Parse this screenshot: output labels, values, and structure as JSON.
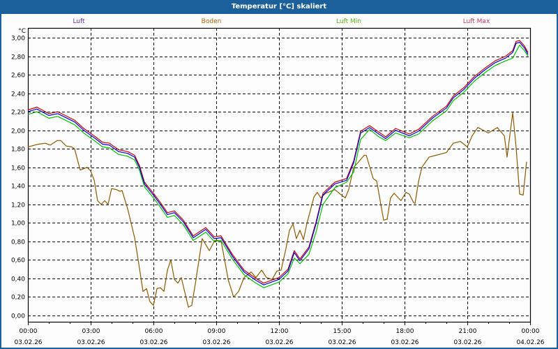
{
  "window": {
    "title": "Temperatur [°C] skaliert"
  },
  "chart_data": {
    "type": "line",
    "title": "Temperatur [°C] skaliert",
    "ylabel": "°C",
    "ylim": [
      0,
      3.0
    ],
    "xlim_hours": [
      0,
      24
    ],
    "grid": true,
    "legend_position": "top",
    "y_ticks": [
      "0,00",
      "0,20",
      "0,40",
      "0,60",
      "0,80",
      "1,00",
      "1,20",
      "1,40",
      "1,60",
      "1,80",
      "2,00",
      "2,20",
      "2,40",
      "2,60",
      "2,80",
      "3,00"
    ],
    "x_ticks": [
      {
        "time": "00:00",
        "date": "03.02.26"
      },
      {
        "time": "03:00",
        "date": "03.02.26"
      },
      {
        "time": "06:00",
        "date": "03.02.26"
      },
      {
        "time": "09:00",
        "date": "03.02.26"
      },
      {
        "time": "12:00",
        "date": "03.02.26"
      },
      {
        "time": "15:00",
        "date": "03.02.26"
      },
      {
        "time": "18:00",
        "date": "03.02.26"
      },
      {
        "time": "21:00",
        "date": "03.02.26"
      },
      {
        "time": "00:00",
        "date": "04.02.26"
      }
    ],
    "x_hours": [
      0,
      0.43,
      1.0,
      1.43,
      2.23,
      2.67,
      3.23,
      3.57,
      3.9,
      4.33,
      4.77,
      5.1,
      5.33,
      5.57,
      6.0,
      6.33,
      6.67,
      7.0,
      7.43,
      7.9,
      8.5,
      8.9,
      9.23,
      9.77,
      10.33,
      10.9,
      11.27,
      12.0,
      12.43,
      12.73,
      13.0,
      13.43,
      13.77,
      14.1,
      14.67,
      15.23,
      15.57,
      15.9,
      16.33,
      16.77,
      17.1,
      17.57,
      18.23,
      18.67,
      19.33,
      20.0,
      20.33,
      20.83,
      21.33,
      21.83,
      22.33,
      22.83,
      23.17,
      23.33,
      23.5,
      23.73,
      23.9
    ],
    "series": [
      {
        "name": "Luft",
        "color": "#0000d8",
        "values": [
          2.2,
          2.23,
          2.16,
          2.18,
          2.09,
          2.0,
          1.91,
          1.85,
          1.84,
          1.77,
          1.75,
          1.71,
          1.6,
          1.42,
          1.3,
          1.2,
          1.09,
          1.11,
          1.01,
          0.84,
          0.93,
          0.83,
          0.84,
          0.64,
          0.47,
          0.38,
          0.33,
          0.39,
          0.48,
          0.68,
          0.59,
          0.72,
          0.99,
          1.3,
          1.42,
          1.46,
          1.65,
          1.97,
          2.03,
          1.96,
          1.91,
          2.0,
          1.94,
          1.99,
          2.13,
          2.24,
          2.35,
          2.44,
          2.56,
          2.65,
          2.73,
          2.78,
          2.84,
          2.94,
          2.95,
          2.89,
          2.82
        ]
      },
      {
        "name": "Boden",
        "color": "#8b5a00",
        "points": [
          [
            0,
            1.82
          ],
          [
            0.5,
            1.85
          ],
          [
            0.83,
            1.86
          ],
          [
            1.07,
            1.84
          ],
          [
            1.4,
            1.89
          ],
          [
            1.57,
            1.89
          ],
          [
            1.83,
            1.83
          ],
          [
            2.1,
            1.82
          ],
          [
            2.23,
            1.8
          ],
          [
            2.5,
            1.57
          ],
          [
            2.83,
            1.6
          ],
          [
            3.0,
            1.56
          ],
          [
            3.17,
            1.46
          ],
          [
            3.33,
            1.24
          ],
          [
            3.5,
            1.2
          ],
          [
            3.67,
            1.24
          ],
          [
            3.83,
            1.2
          ],
          [
            4.0,
            1.37
          ],
          [
            4.23,
            1.36
          ],
          [
            4.4,
            1.34
          ],
          [
            4.5,
            1.35
          ],
          [
            4.77,
            1.15
          ],
          [
            5.1,
            0.84
          ],
          [
            5.27,
            0.6
          ],
          [
            5.5,
            0.26
          ],
          [
            5.67,
            0.29
          ],
          [
            5.83,
            0.15
          ],
          [
            6.0,
            0.11
          ],
          [
            6.17,
            0.29
          ],
          [
            6.33,
            0.3
          ],
          [
            6.5,
            0.26
          ],
          [
            6.67,
            0.49
          ],
          [
            6.83,
            0.6
          ],
          [
            7.0,
            0.39
          ],
          [
            7.17,
            0.35
          ],
          [
            7.33,
            0.41
          ],
          [
            7.67,
            0.09
          ],
          [
            7.83,
            0.11
          ],
          [
            8.0,
            0.34
          ],
          [
            8.33,
            0.83
          ],
          [
            8.67,
            0.7
          ],
          [
            8.93,
            0.81
          ],
          [
            9.23,
            0.81
          ],
          [
            9.57,
            0.39
          ],
          [
            9.83,
            0.2
          ],
          [
            10.07,
            0.26
          ],
          [
            10.33,
            0.41
          ],
          [
            10.67,
            0.47
          ],
          [
            10.9,
            0.41
          ],
          [
            11.17,
            0.49
          ],
          [
            11.4,
            0.41
          ],
          [
            11.67,
            0.39
          ],
          [
            11.9,
            0.48
          ],
          [
            12.1,
            0.49
          ],
          [
            12.33,
            0.72
          ],
          [
            12.5,
            0.92
          ],
          [
            12.67,
            0.99
          ],
          [
            12.83,
            0.83
          ],
          [
            13.0,
            0.92
          ],
          [
            13.17,
            0.82
          ],
          [
            13.33,
            0.99
          ],
          [
            13.67,
            1.28
          ],
          [
            13.83,
            1.33
          ],
          [
            14.0,
            1.27
          ],
          [
            14.23,
            1.32
          ],
          [
            14.67,
            1.36
          ],
          [
            14.93,
            1.31
          ],
          [
            15.17,
            1.27
          ],
          [
            15.33,
            1.36
          ],
          [
            15.57,
            1.6
          ],
          [
            15.77,
            1.65
          ],
          [
            16.07,
            1.73
          ],
          [
            16.17,
            1.73
          ],
          [
            16.5,
            1.48
          ],
          [
            16.67,
            1.45
          ],
          [
            17.0,
            1.03
          ],
          [
            17.17,
            1.04
          ],
          [
            17.33,
            1.27
          ],
          [
            17.5,
            1.32
          ],
          [
            17.83,
            1.24
          ],
          [
            18.07,
            1.33
          ],
          [
            18.23,
            1.31
          ],
          [
            18.43,
            1.22
          ],
          [
            18.5,
            1.21
          ],
          [
            18.67,
            1.45
          ],
          [
            18.83,
            1.6
          ],
          [
            19.17,
            1.71
          ],
          [
            19.5,
            1.73
          ],
          [
            20.0,
            1.76
          ],
          [
            20.33,
            1.86
          ],
          [
            20.67,
            1.88
          ],
          [
            21.0,
            1.82
          ],
          [
            21.23,
            1.94
          ],
          [
            21.5,
            2.03
          ],
          [
            21.77,
            2.0
          ],
          [
            22.0,
            1.97
          ],
          [
            22.43,
            2.03
          ],
          [
            22.77,
            1.94
          ],
          [
            22.9,
            1.71
          ],
          [
            23.17,
            2.19
          ],
          [
            23.33,
            1.82
          ],
          [
            23.5,
            1.31
          ],
          [
            23.67,
            1.3
          ],
          [
            23.83,
            1.66
          ]
        ]
      },
      {
        "name": "Luft Min",
        "color": "#00c000",
        "values": [
          2.17,
          2.2,
          2.13,
          2.15,
          2.06,
          1.97,
          1.88,
          1.82,
          1.81,
          1.74,
          1.72,
          1.68,
          1.57,
          1.39,
          1.27,
          1.17,
          1.06,
          1.08,
          0.98,
          0.81,
          0.9,
          0.8,
          0.81,
          0.61,
          0.44,
          0.35,
          0.3,
          0.36,
          0.45,
          0.62,
          0.56,
          0.66,
          0.9,
          1.2,
          1.38,
          1.44,
          1.55,
          1.9,
          2.01,
          1.93,
          1.89,
          1.97,
          1.92,
          1.96,
          2.1,
          2.21,
          2.32,
          2.41,
          2.53,
          2.62,
          2.7,
          2.75,
          2.78,
          2.85,
          2.92,
          2.86,
          2.8
        ]
      },
      {
        "name": "Luft Max",
        "color": "#c80000",
        "values": [
          2.22,
          2.25,
          2.18,
          2.2,
          2.11,
          2.02,
          1.93,
          1.87,
          1.86,
          1.79,
          1.77,
          1.73,
          1.62,
          1.44,
          1.32,
          1.22,
          1.11,
          1.13,
          1.03,
          0.86,
          0.95,
          0.85,
          0.86,
          0.66,
          0.49,
          0.4,
          0.35,
          0.41,
          0.5,
          0.7,
          0.61,
          0.74,
          1.01,
          1.32,
          1.44,
          1.48,
          1.67,
          1.99,
          2.05,
          1.98,
          1.93,
          2.02,
          1.96,
          2.01,
          2.15,
          2.26,
          2.37,
          2.46,
          2.58,
          2.67,
          2.75,
          2.8,
          2.86,
          2.96,
          2.97,
          2.91,
          2.84
        ]
      }
    ],
    "legend": [
      {
        "label": "Luft",
        "color": "#6a2aa8"
      },
      {
        "label": "Boden",
        "color": "#a8640a"
      },
      {
        "label": "Luft Min",
        "color": "#58b010"
      },
      {
        "label": "Luft Max",
        "color": "#c03868"
      }
    ]
  }
}
